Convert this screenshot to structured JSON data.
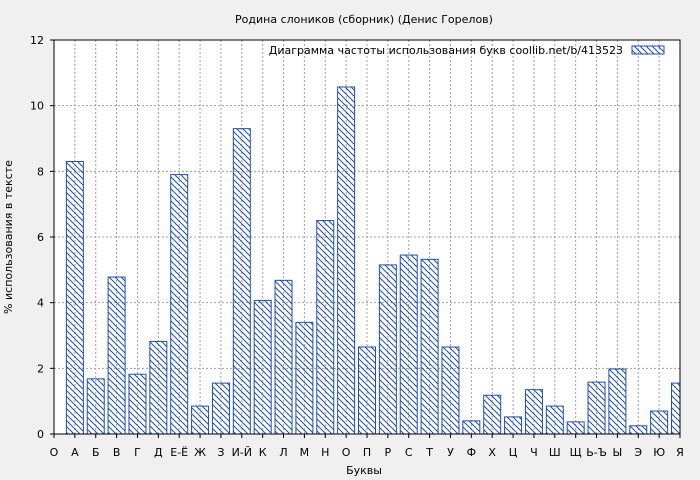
{
  "chart_data": {
    "type": "bar",
    "title": "Родина слоников (сборник) (Денис Горелов)",
    "xlabel": "Буквы",
    "ylabel": "% использования в тексте",
    "legend": {
      "label": "Диаграмма частоты использования букв  coollib.net/b/413523",
      "position": "top-right"
    },
    "ylim": [
      0,
      12
    ],
    "yticks": [
      "0",
      "2",
      "4",
      "6",
      "8",
      "10",
      "12"
    ],
    "grid": true,
    "colors": {
      "bar_stroke": "#1f4fa8",
      "grid": "#a0a0a0",
      "background": "#ffffff"
    },
    "categories": [
      "О",
      "А",
      "Б",
      "В",
      "Г",
      "Д",
      "Е-Ё",
      "Ж",
      "З",
      "И-Й",
      "К",
      "Л",
      "М",
      "Н",
      "О",
      "П",
      "Р",
      "С",
      "Т",
      "У",
      "Ф",
      "Х",
      "Ц",
      "Ч",
      "Ш",
      "Щ",
      "Ь-Ъ",
      "Ы",
      "Э",
      "Ю",
      "Я"
    ],
    "values": [
      null,
      8.3,
      1.68,
      4.78,
      1.82,
      2.82,
      7.9,
      0.85,
      1.55,
      9.3,
      4.07,
      4.68,
      3.4,
      6.5,
      10.57,
      2.65,
      5.15,
      5.45,
      5.32,
      2.65,
      0.4,
      1.18,
      0.52,
      1.35,
      0.85,
      0.37,
      1.58,
      1.98,
      0.25,
      0.7,
      1.55
    ]
  }
}
